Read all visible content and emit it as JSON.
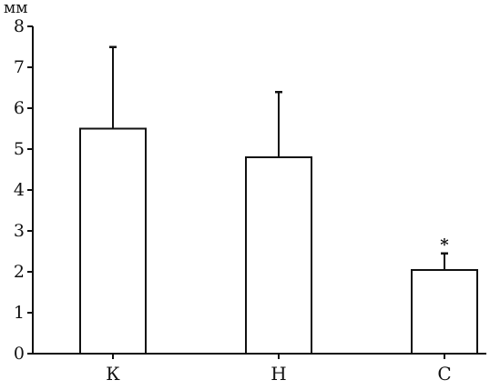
{
  "chart_data": {
    "type": "bar",
    "title": "",
    "xlabel": "",
    "ylabel": "мм",
    "categories": [
      "К",
      "Н",
      "С"
    ],
    "values": [
      5.5,
      4.8,
      2.05
    ],
    "error_bars_upper": [
      7.5,
      6.4,
      2.45
    ],
    "significance_markers": [
      "",
      "",
      "*"
    ],
    "ylim": [
      0,
      8
    ],
    "yticks": [
      0,
      1,
      2,
      3,
      4,
      5,
      6,
      7,
      8
    ],
    "grid": false,
    "legend": "none",
    "colors": {
      "bar_fill": "#ffffff",
      "bar_stroke": "#111111",
      "axis": "#111111"
    }
  }
}
